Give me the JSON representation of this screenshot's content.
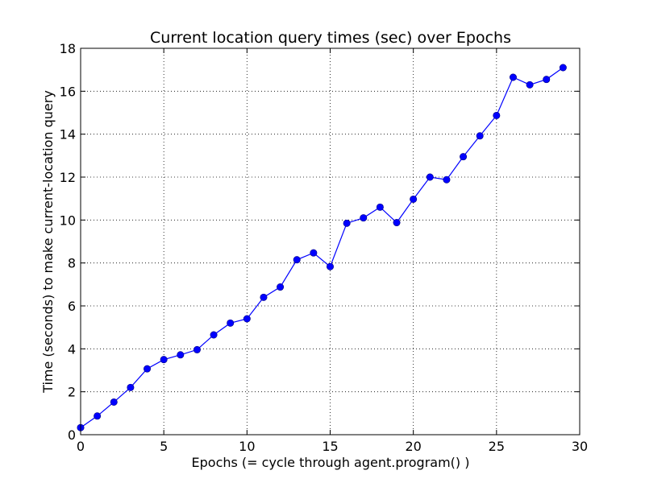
{
  "chart_data": {
    "type": "line",
    "title": "Current location query times (sec) over Epochs",
    "xlabel": "Epochs (= cycle through agent.program() )",
    "ylabel": "Time (seconds) to make current-location query",
    "xlim": [
      0,
      30
    ],
    "ylim": [
      0,
      18
    ],
    "xticks": [
      0,
      5,
      10,
      15,
      20,
      25,
      30
    ],
    "yticks": [
      0,
      2,
      4,
      6,
      8,
      10,
      12,
      14,
      16,
      18
    ],
    "grid": true,
    "series_color": "#0000ff",
    "x": [
      0,
      1,
      2,
      3,
      4,
      5,
      6,
      7,
      8,
      9,
      10,
      11,
      12,
      13,
      14,
      15,
      16,
      17,
      18,
      19,
      20,
      21,
      22,
      23,
      24,
      25,
      26,
      27,
      28,
      29
    ],
    "series": [
      {
        "values": [
          0.33,
          0.87,
          1.52,
          2.2,
          3.07,
          3.5,
          3.72,
          3.96,
          4.65,
          5.2,
          5.4,
          6.4,
          6.88,
          8.15,
          8.47,
          7.83,
          9.85,
          10.1,
          10.6,
          9.88,
          10.97,
          12.0,
          11.88,
          12.95,
          13.92,
          14.87,
          16.65,
          16.3,
          16.55,
          17.1
        ]
      }
    ]
  }
}
